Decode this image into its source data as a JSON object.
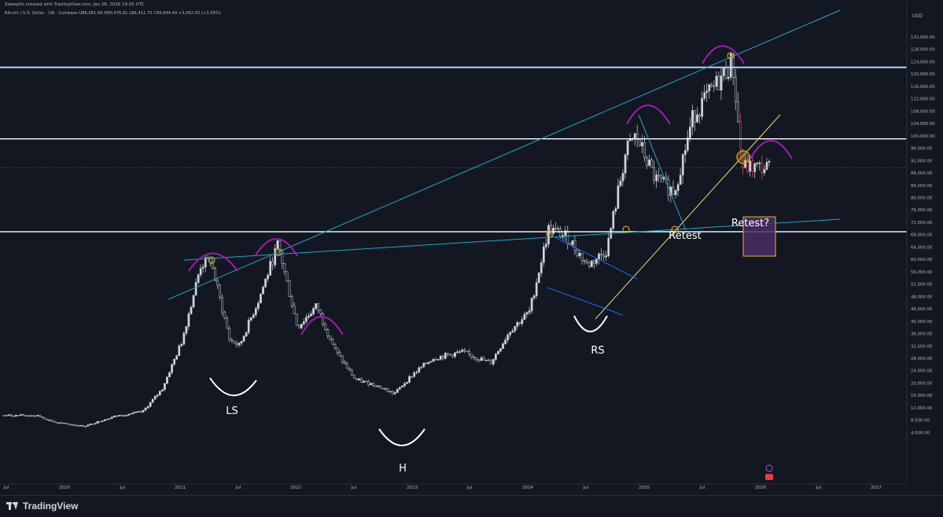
{
  "header": {
    "credit": "Sweep0x created with TradingView.com, Jan 28, 2026 18:05 UTC",
    "symbol": "Bitcoin / U.S. Dollar · 1W · Coinbase",
    "ohlc": "O86,561.94 H90,476.81 L86,411.70 C89,644.49 +3,082.55 (+3.56%)"
  },
  "currency": "USD",
  "colors": {
    "background": "#131722",
    "candle": "#d1d4dc",
    "candle_red": "#f7525f",
    "trendline_cyan": "#22a6c9",
    "trendline_yellow": "#e8e26b",
    "channel_blue": "#2962ff",
    "arc_purple": "#a21caf",
    "marker_orange": "#d4a017",
    "target_box": "#4a2d63",
    "target_box_border": "#f0b429"
  },
  "chart_data": {
    "type": "candlestick",
    "title": "Bitcoin / U.S. Dollar · 1W · Coinbase",
    "y_axis_labels": [
      "132,000.00",
      "128,000.00",
      "124,000.00",
      "120,000.00",
      "116,000.00",
      "112,000.00",
      "108,000.00",
      "104,000.00",
      "100,000.00",
      "96,000.00",
      "92,000.00",
      "88,000.00",
      "84,000.00",
      "80,000.00",
      "76,000.00",
      "72,000.00",
      "68,000.00",
      "64,000.00",
      "60,000.00",
      "56,000.00",
      "52,000.00",
      "48,000.00",
      "44,000.00",
      "40,000.00",
      "36,000.00",
      "32,000.00",
      "28,000.00",
      "24,000.00",
      "20,000.00",
      "16,000.00",
      "12,000.00",
      "8,000.00",
      "4,000.00"
    ],
    "x_axis_labels": [
      "Jul",
      "2020",
      "Jul",
      "2021",
      "Jul",
      "2022",
      "Jul",
      "2023",
      "Jul",
      "2024",
      "Jul",
      "2025",
      "Jul",
      "2026",
      "Jul",
      "2027"
    ],
    "horizontal_levels": [
      {
        "value": 122153.12,
        "label": "122,153.12",
        "highlight": true
      },
      {
        "value": 99027.71,
        "label": "99,027.71",
        "highlight": false
      },
      {
        "value": 68950.8,
        "label": "68,950.80",
        "highlight": false
      }
    ],
    "current_price": {
      "label": "89,644.49",
      "countdown": "4d 5h"
    },
    "annotations": [
      "LS",
      "H",
      "RS",
      "Retest",
      "Retest?"
    ],
    "series": [
      {
        "name": "BTCUSD",
        "x": [
          "2019-10",
          "2019-12",
          "2020-03",
          "2020-06",
          "2020-09",
          "2020-11",
          "2021-01",
          "2021-03",
          "2021-04",
          "2021-06",
          "2021-07",
          "2021-09",
          "2021-11",
          "2022-01",
          "2022-03",
          "2022-05",
          "2022-07",
          "2022-09",
          "2022-11",
          "2023-01",
          "2023-03",
          "2023-06",
          "2023-09",
          "2023-11",
          "2024-01",
          "2024-03",
          "2024-05",
          "2024-07",
          "2024-09",
          "2024-11",
          "2024-12",
          "2025-02",
          "2025-04",
          "2025-06",
          "2025-08",
          "2025-10",
          "2025-11",
          "2026-01"
        ],
        "values": [
          9500,
          7200,
          6000,
          9200,
          10700,
          18000,
          33000,
          58000,
          60000,
          34000,
          32000,
          47000,
          65000,
          38000,
          45000,
          30000,
          21000,
          19500,
          16500,
          23000,
          28000,
          30000,
          26500,
          37000,
          43000,
          70000,
          67000,
          58000,
          63000,
          95000,
          100000,
          86000,
          82000,
          107000,
          115000,
          124000,
          90000,
          89644
        ]
      }
    ]
  }
}
